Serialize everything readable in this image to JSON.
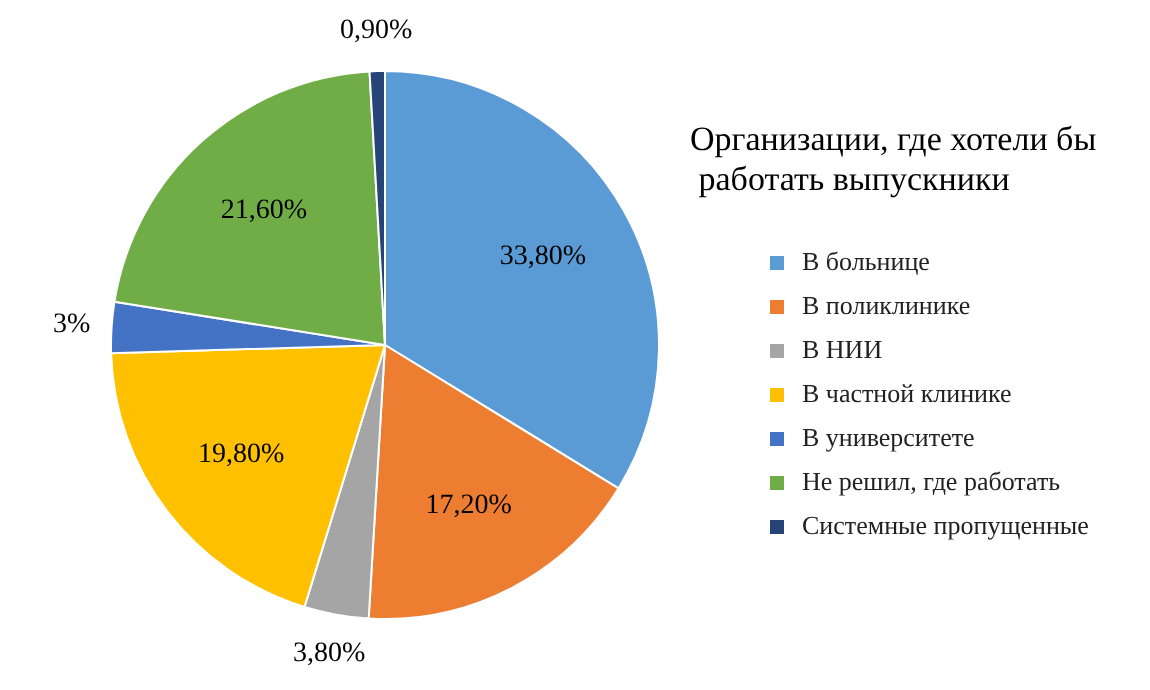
{
  "chart_data": {
    "type": "pie",
    "title": "Организации, где хотели бы\n работать выпускники",
    "categories": [
      "В больнице",
      "В поликлинике",
      "В НИИ",
      "В частной клинике",
      "В университете",
      "Не решил, где работать",
      "Системные пропущенные"
    ],
    "values": [
      33.8,
      17.2,
      3.8,
      19.8,
      3,
      21.6,
      0.9
    ],
    "colors": [
      "#5b9bd5",
      "#ed7d31",
      "#a5a5a5",
      "#ffc000",
      "#4472c4",
      "#70ad47",
      "#264478"
    ],
    "value_labels": [
      "33,80%",
      "17,20%",
      "3,80%",
      "19,80%",
      "3%",
      "21,60%",
      "0,90%"
    ],
    "legend": "right"
  }
}
